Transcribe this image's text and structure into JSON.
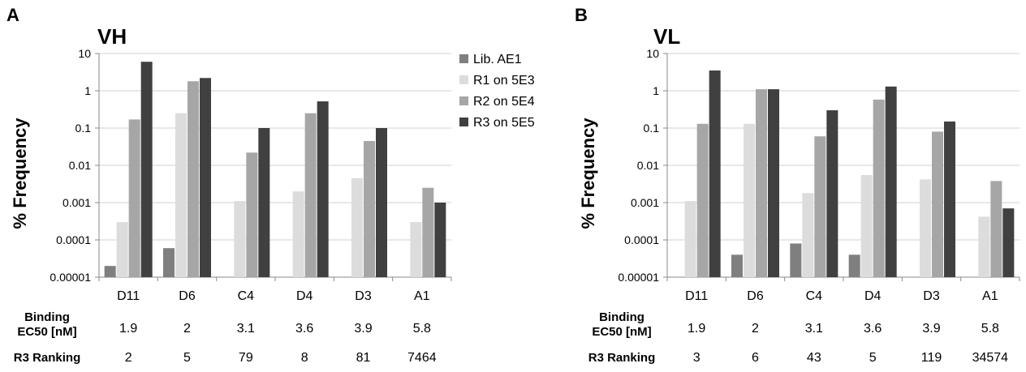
{
  "chart_data": [
    {
      "type": "bar",
      "panel": "A",
      "title": "VH",
      "ylabel": "% Frequency",
      "yscale": "log",
      "ylim": [
        1e-05,
        10
      ],
      "yticks": [
        "10",
        "1",
        "0.1",
        "0.01",
        "0.001",
        "0.0001",
        "0.00001"
      ],
      "categories": [
        "D11",
        "D6",
        "C4",
        "D4",
        "D3",
        "A1"
      ],
      "series": [
        {
          "name": "Lib. AE1",
          "color": "#7f7f7f",
          "values": [
            2e-05,
            6e-05,
            null,
            null,
            null,
            null
          ]
        },
        {
          "name": "R1 on 5E3",
          "color": "#dcdcdc",
          "values": [
            0.0003,
            0.25,
            0.0011,
            0.002,
            0.0045,
            0.0003
          ]
        },
        {
          "name": "R2 on 5E4",
          "color": "#a6a6a6",
          "values": [
            0.17,
            1.8,
            0.022,
            0.25,
            0.045,
            0.0025
          ]
        },
        {
          "name": "R3 on 5E5",
          "color": "#404040",
          "values": [
            6.0,
            2.2,
            0.1,
            0.52,
            0.1,
            0.001
          ]
        }
      ],
      "binding_label_1": "Binding",
      "binding_label_2": "EC50 [nM]",
      "binding_ec50": [
        "1.9",
        "2",
        "3.1",
        "3.6",
        "3.9",
        "5.8"
      ],
      "ranking_label": "R3 Ranking",
      "r3_ranking": [
        "2",
        "5",
        "79",
        "8",
        "81",
        "7464"
      ]
    },
    {
      "type": "bar",
      "panel": "B",
      "title": "VL",
      "ylabel": "% Frequency",
      "yscale": "log",
      "ylim": [
        1e-05,
        10
      ],
      "yticks": [
        "10",
        "1",
        "0.1",
        "0.01",
        "0.001",
        "0.0001",
        "0.00001"
      ],
      "categories": [
        "D11",
        "D6",
        "C4",
        "D4",
        "D3",
        "A1"
      ],
      "series": [
        {
          "name": "Lib. AE1",
          "color": "#7f7f7f",
          "values": [
            null,
            4e-05,
            8e-05,
            4e-05,
            null,
            null
          ]
        },
        {
          "name": "R1 on 5E3",
          "color": "#dcdcdc",
          "values": [
            0.0011,
            0.13,
            0.0018,
            0.0055,
            0.0042,
            0.00042
          ]
        },
        {
          "name": "R2 on 5E4",
          "color": "#a6a6a6",
          "values": [
            0.13,
            1.1,
            0.06,
            0.58,
            0.08,
            0.0038
          ]
        },
        {
          "name": "R3 on 5E5",
          "color": "#404040",
          "values": [
            3.5,
            1.1,
            0.3,
            1.3,
            0.15,
            0.0007
          ]
        }
      ],
      "binding_label_1": "Binding",
      "binding_label_2": "EC50 [nM]",
      "binding_ec50": [
        "1.9",
        "2",
        "3.1",
        "3.6",
        "3.9",
        "5.8"
      ],
      "ranking_label": "R3 Ranking",
      "r3_ranking": [
        "3",
        "6",
        "43",
        "5",
        "119",
        "34574"
      ]
    }
  ],
  "legend": {
    "placement": "right of panel A",
    "items": [
      {
        "label": "Lib. AE1",
        "color": "#7f7f7f"
      },
      {
        "label": "R1 on 5E3",
        "color": "#dcdcdc"
      },
      {
        "label": "R2 on 5E4",
        "color": "#a6a6a6"
      },
      {
        "label": "R3 on 5E5",
        "color": "#404040"
      }
    ]
  }
}
